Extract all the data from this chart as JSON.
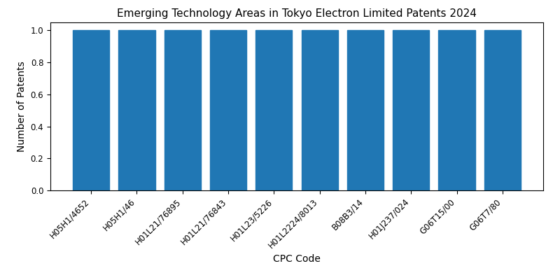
{
  "title": "Emerging Technology Areas in Tokyo Electron Limited Patents 2024",
  "xlabel": "CPC Code",
  "ylabel": "Number of Patents",
  "categories": [
    "H05H1/4652",
    "H05H1/46",
    "H01L21/76895",
    "H01L21/76843",
    "H01L23/5226",
    "H01L2224/8013",
    "B08B3/14",
    "H01J237/024",
    "G06T15/00",
    "G06T7/80"
  ],
  "values": [
    1,
    1,
    1,
    1,
    1,
    1,
    1,
    1,
    1,
    1
  ],
  "bar_color": "#2077b4",
  "ylim": [
    0,
    1.05
  ],
  "yticks": [
    0.0,
    0.2,
    0.4,
    0.6,
    0.8,
    1.0
  ],
  "title_fontsize": 11,
  "label_fontsize": 10,
  "tick_fontsize": 8.5,
  "bar_width": 0.8
}
